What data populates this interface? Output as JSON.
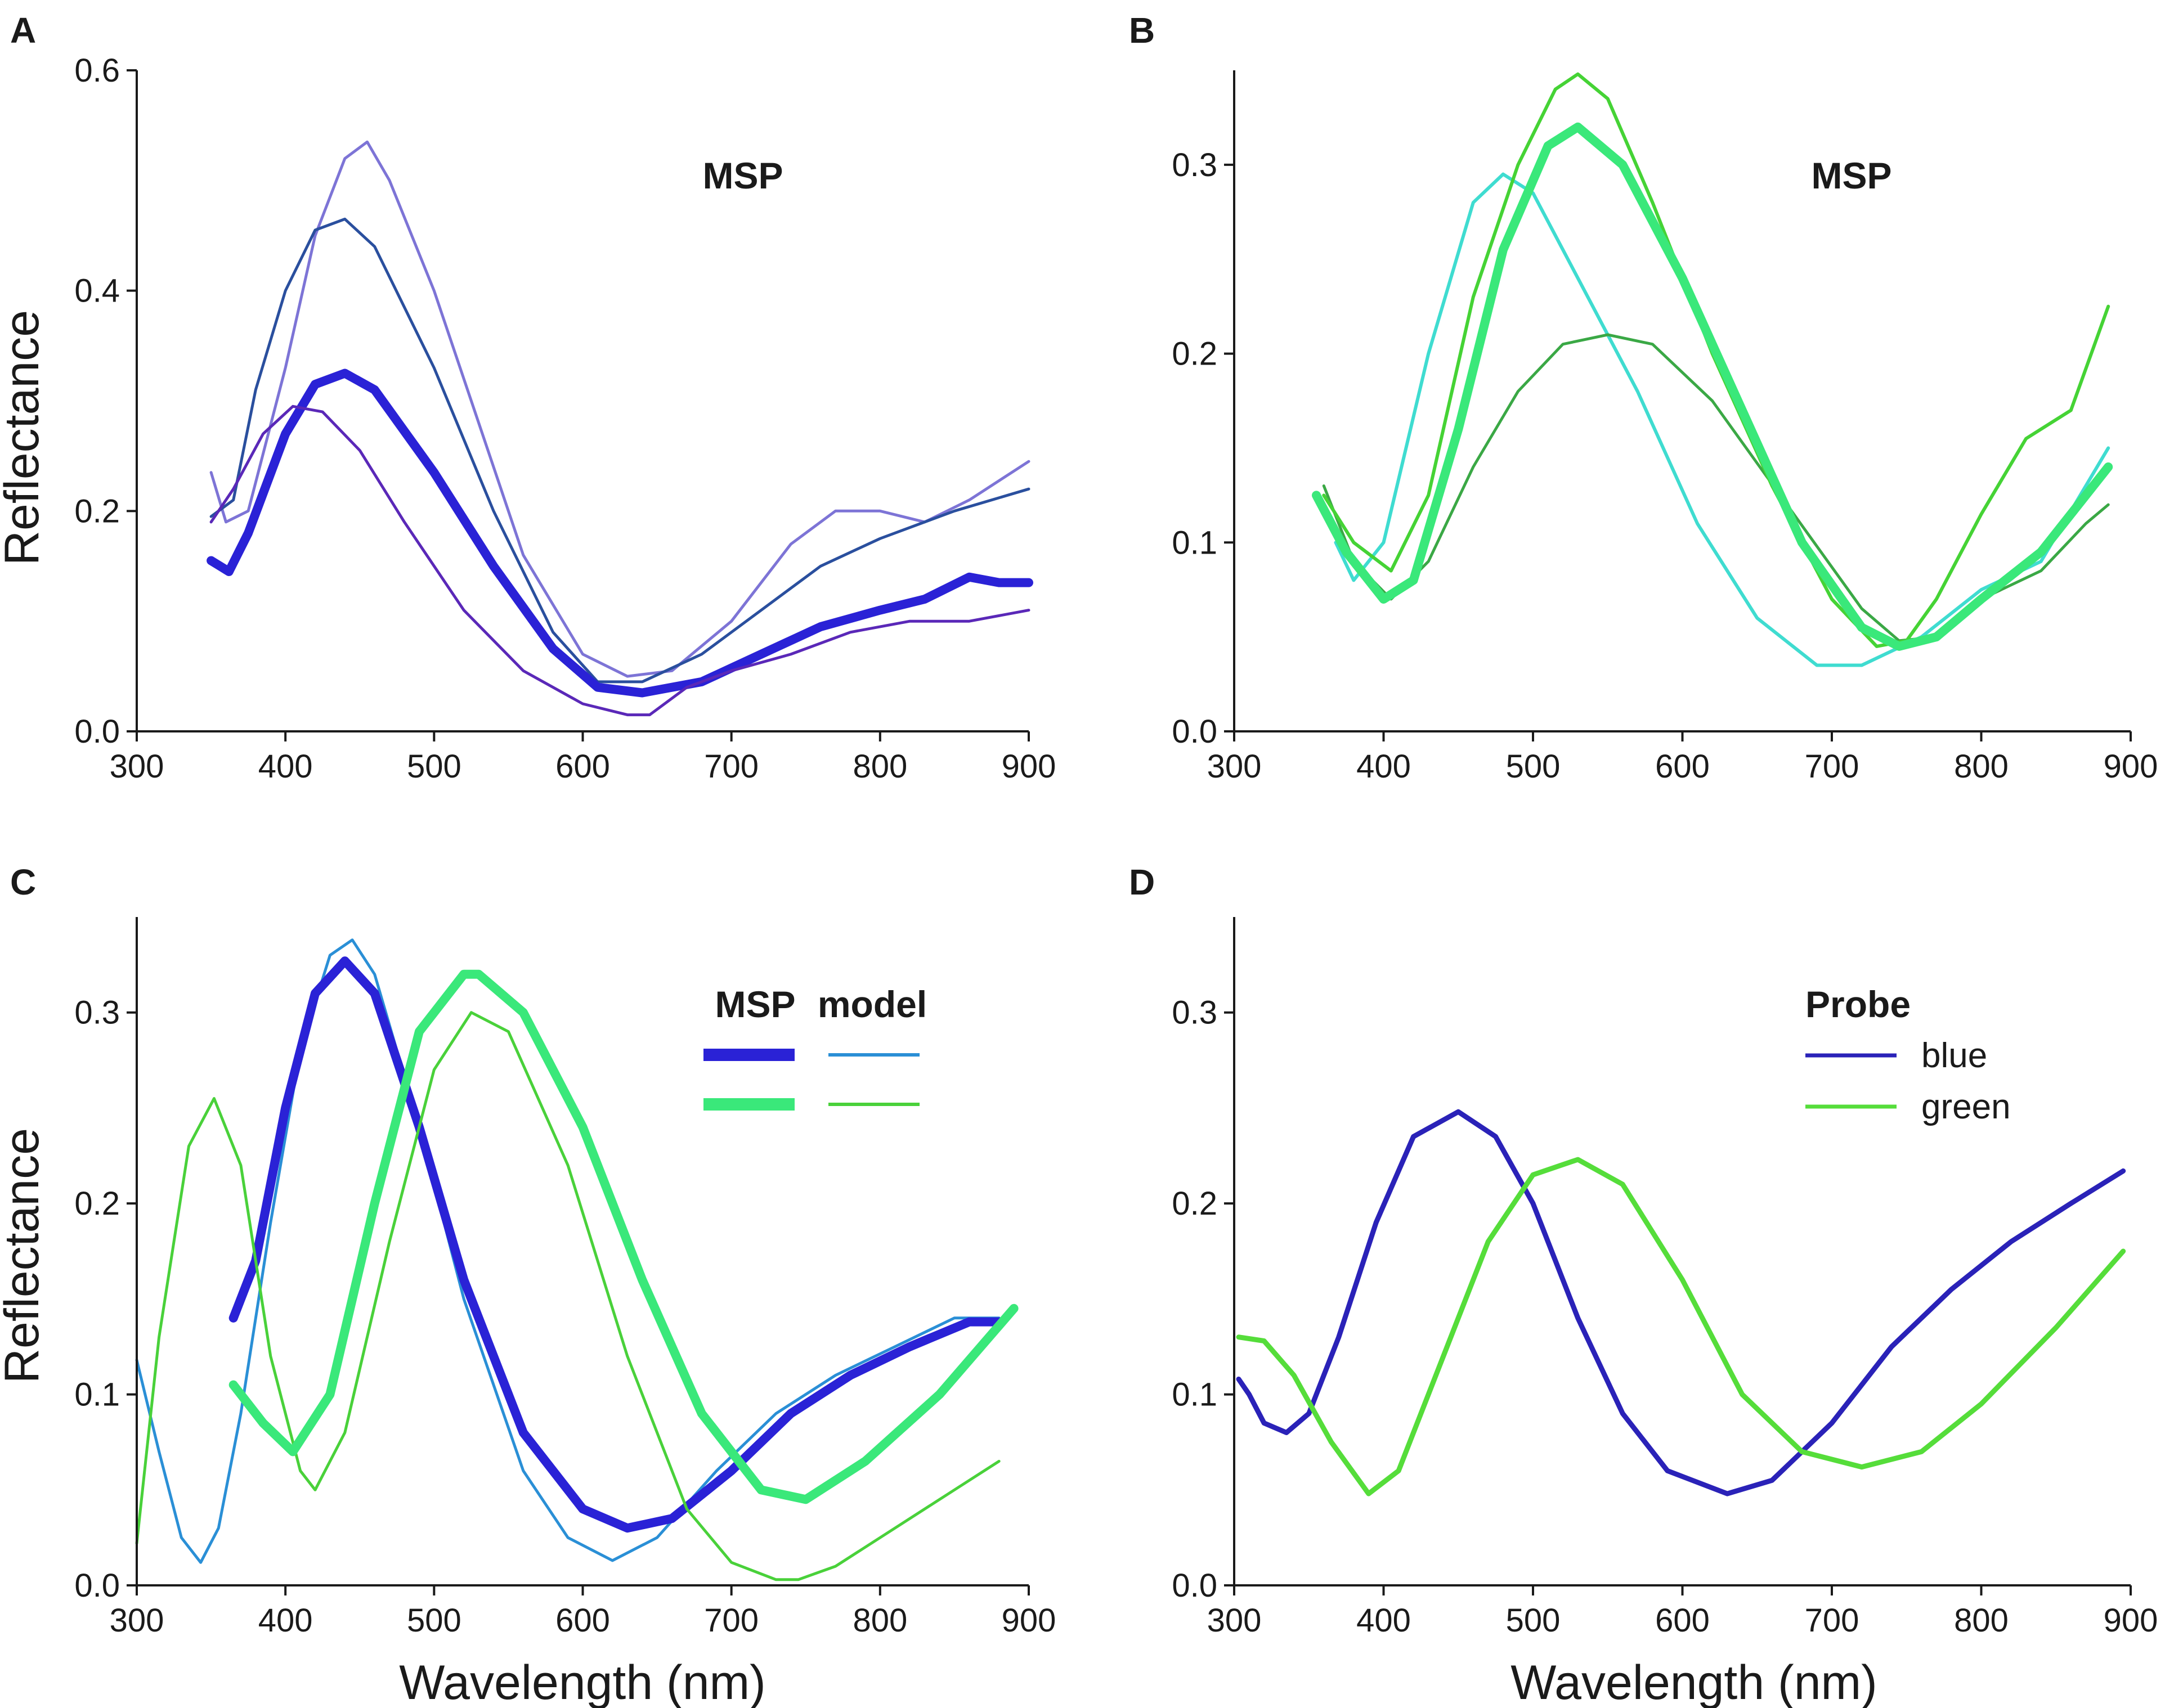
{
  "colors": {
    "blue_msp": "#2a22d6",
    "blue_model": "#2a8fd6",
    "blue_probe": "#2a22b8",
    "green_msp": "#3ae87a",
    "green_model": "#49d13a",
    "green_probe": "#55dd3a",
    "light_purple": "#7d74d6",
    "navy": "#2a4f9e",
    "purple": "#5a28b8",
    "cyan": "#3fdcd0",
    "lime": "#45d335",
    "dark_green": "#3aa845"
  },
  "chart_data": [
    {
      "panel": "A",
      "type": "line",
      "title": "",
      "annotation": "MSP",
      "xlabel": "",
      "ylabel": "Reflectance",
      "xlim": [
        300,
        900
      ],
      "ylim": [
        0,
        0.6
      ],
      "xticks": [
        "300",
        "400",
        "500",
        "600",
        "700",
        "800",
        "900"
      ],
      "yticks": [
        "0.0",
        "0.2",
        "0.4",
        "0.6"
      ],
      "series": [
        {
          "name": "msp-light-purple",
          "color": "#7d74d6",
          "width": 5,
          "x": [
            350,
            360,
            375,
            400,
            420,
            440,
            455,
            470,
            500,
            530,
            560,
            600,
            630,
            660,
            700,
            740,
            770,
            800,
            830,
            860,
            900
          ],
          "y": [
            0.235,
            0.19,
            0.2,
            0.33,
            0.45,
            0.52,
            0.535,
            0.5,
            0.4,
            0.28,
            0.16,
            0.07,
            0.05,
            0.055,
            0.1,
            0.17,
            0.2,
            0.2,
            0.19,
            0.21,
            0.245
          ]
        },
        {
          "name": "msp-navy",
          "color": "#2a4f9e",
          "width": 5,
          "x": [
            350,
            365,
            380,
            400,
            420,
            440,
            460,
            500,
            540,
            580,
            610,
            640,
            680,
            720,
            760,
            800,
            850,
            900
          ],
          "y": [
            0.195,
            0.21,
            0.31,
            0.4,
            0.455,
            0.465,
            0.44,
            0.33,
            0.2,
            0.09,
            0.045,
            0.045,
            0.07,
            0.11,
            0.15,
            0.175,
            0.2,
            0.22
          ]
        },
        {
          "name": "msp-blue-mean",
          "color": "#2a22d6",
          "width": 16,
          "x": [
            350,
            362,
            375,
            400,
            420,
            440,
            460,
            500,
            540,
            580,
            610,
            640,
            680,
            720,
            760,
            800,
            830,
            860,
            880,
            900
          ],
          "y": [
            0.155,
            0.145,
            0.18,
            0.27,
            0.315,
            0.325,
            0.31,
            0.235,
            0.15,
            0.075,
            0.04,
            0.035,
            0.045,
            0.07,
            0.095,
            0.11,
            0.12,
            0.14,
            0.135,
            0.135
          ]
        },
        {
          "name": "msp-purple",
          "color": "#5a28b8",
          "width": 5,
          "x": [
            350,
            365,
            385,
            405,
            425,
            450,
            480,
            520,
            560,
            600,
            630,
            645,
            670,
            700,
            740,
            780,
            820,
            860,
            900
          ],
          "y": [
            0.19,
            0.22,
            0.27,
            0.295,
            0.29,
            0.255,
            0.19,
            0.11,
            0.055,
            0.025,
            0.015,
            0.015,
            0.04,
            0.055,
            0.07,
            0.09,
            0.1,
            0.1,
            0.11
          ]
        }
      ]
    },
    {
      "panel": "B",
      "type": "line",
      "title": "",
      "annotation": "MSP",
      "xlabel": "",
      "ylabel": "",
      "xlim": [
        300,
        900
      ],
      "ylim": [
        0,
        0.35
      ],
      "xticks": [
        "300",
        "400",
        "500",
        "600",
        "700",
        "800",
        "900"
      ],
      "yticks": [
        "0.0",
        "0.1",
        "0.2",
        "0.3"
      ],
      "series": [
        {
          "name": "msp-cyan",
          "color": "#3fdcd0",
          "width": 6,
          "x": [
            368,
            380,
            400,
            430,
            460,
            480,
            500,
            530,
            570,
            610,
            650,
            690,
            720,
            760,
            800,
            840,
            885
          ],
          "y": [
            0.1,
            0.08,
            0.1,
            0.2,
            0.28,
            0.295,
            0.285,
            0.24,
            0.18,
            0.11,
            0.06,
            0.035,
            0.035,
            0.05,
            0.075,
            0.09,
            0.15
          ]
        },
        {
          "name": "msp-dark-green",
          "color": "#3aa845",
          "width": 5,
          "x": [
            360,
            380,
            405,
            430,
            460,
            490,
            520,
            550,
            580,
            620,
            670,
            720,
            745,
            770,
            800,
            840,
            870,
            885
          ],
          "y": [
            0.13,
            0.09,
            0.07,
            0.09,
            0.14,
            0.18,
            0.205,
            0.21,
            0.205,
            0.175,
            0.12,
            0.065,
            0.048,
            0.05,
            0.07,
            0.085,
            0.11,
            0.12
          ]
        },
        {
          "name": "msp-lime",
          "color": "#45d335",
          "width": 6,
          "x": [
            360,
            380,
            405,
            430,
            460,
            490,
            515,
            530,
            550,
            580,
            620,
            660,
            700,
            730,
            750,
            770,
            800,
            830,
            860,
            885
          ],
          "y": [
            0.125,
            0.1,
            0.085,
            0.125,
            0.23,
            0.3,
            0.34,
            0.348,
            0.335,
            0.28,
            0.2,
            0.13,
            0.07,
            0.045,
            0.048,
            0.07,
            0.115,
            0.155,
            0.17,
            0.225
          ]
        },
        {
          "name": "msp-green-mean",
          "color": "#3ae87a",
          "width": 16,
          "x": [
            355,
            375,
            400,
            420,
            450,
            480,
            510,
            530,
            560,
            600,
            640,
            680,
            720,
            745,
            770,
            800,
            840,
            885
          ],
          "y": [
            0.125,
            0.095,
            0.07,
            0.08,
            0.16,
            0.255,
            0.31,
            0.32,
            0.3,
            0.24,
            0.17,
            0.1,
            0.055,
            0.045,
            0.05,
            0.07,
            0.095,
            0.14
          ]
        }
      ]
    },
    {
      "panel": "C",
      "type": "line",
      "title": "",
      "xlabel": "Wavelength (nm)",
      "ylabel": "Reflectance",
      "xlim": [
        300,
        900
      ],
      "ylim": [
        0,
        0.35
      ],
      "xticks": [
        "300",
        "400",
        "500",
        "600",
        "700",
        "800",
        "900"
      ],
      "yticks": [
        "0.0",
        "0.1",
        "0.2",
        "0.3"
      ],
      "legend": {
        "col1": "MSP",
        "col2": "model",
        "position": "top-right"
      },
      "series": [
        {
          "name": "model-blue",
          "color": "#2a8fd6",
          "width": 5,
          "x": [
            300,
            315,
            330,
            343,
            355,
            370,
            390,
            410,
            430,
            445,
            460,
            490,
            520,
            560,
            590,
            620,
            650,
            690,
            730,
            770,
            810,
            850,
            880
          ],
          "y": [
            0.118,
            0.07,
            0.025,
            0.012,
            0.03,
            0.09,
            0.19,
            0.28,
            0.33,
            0.338,
            0.32,
            0.24,
            0.15,
            0.06,
            0.025,
            0.013,
            0.025,
            0.06,
            0.09,
            0.11,
            0.125,
            0.14,
            0.14
          ]
        },
        {
          "name": "msp-blue",
          "color": "#2a22d6",
          "width": 16,
          "x": [
            365,
            380,
            400,
            420,
            440,
            460,
            490,
            520,
            560,
            600,
            630,
            660,
            700,
            740,
            780,
            820,
            860,
            880
          ],
          "y": [
            0.14,
            0.17,
            0.25,
            0.31,
            0.327,
            0.31,
            0.24,
            0.16,
            0.08,
            0.04,
            0.03,
            0.035,
            0.06,
            0.09,
            0.11,
            0.125,
            0.138,
            0.138
          ]
        },
        {
          "name": "model-green",
          "color": "#49d13a",
          "width": 5,
          "x": [
            300,
            315,
            335,
            352,
            370,
            390,
            410,
            420,
            440,
            470,
            500,
            525,
            550,
            590,
            630,
            670,
            700,
            730,
            745,
            770,
            810,
            850,
            880
          ],
          "y": [
            0.022,
            0.13,
            0.23,
            0.255,
            0.22,
            0.12,
            0.06,
            0.05,
            0.08,
            0.18,
            0.27,
            0.3,
            0.29,
            0.22,
            0.12,
            0.04,
            0.012,
            0.003,
            0.003,
            0.01,
            0.03,
            0.05,
            0.065
          ]
        },
        {
          "name": "msp-green",
          "color": "#3ae87a",
          "width": 16,
          "x": [
            365,
            385,
            405,
            430,
            460,
            490,
            520,
            530,
            560,
            600,
            640,
            680,
            720,
            750,
            790,
            840,
            890
          ],
          "y": [
            0.105,
            0.085,
            0.07,
            0.1,
            0.2,
            0.29,
            0.32,
            0.32,
            0.3,
            0.24,
            0.16,
            0.09,
            0.05,
            0.045,
            0.065,
            0.1,
            0.145
          ]
        }
      ]
    },
    {
      "panel": "D",
      "type": "line",
      "title": "",
      "xlabel": "Wavelength (nm)",
      "ylabel": "",
      "xlim": [
        300,
        900
      ],
      "ylim": [
        0,
        0.35
      ],
      "xticks": [
        "300",
        "400",
        "500",
        "600",
        "700",
        "800",
        "900"
      ],
      "yticks": [
        "0.0",
        "0.1",
        "0.2",
        "0.3"
      ],
      "legend": {
        "title": "Probe",
        "entries": [
          "blue",
          "green"
        ],
        "position": "top-right"
      },
      "series": [
        {
          "name": "probe-blue",
          "color": "#2a22b8",
          "width": 9,
          "x": [
            303,
            310,
            320,
            335,
            350,
            370,
            395,
            420,
            450,
            475,
            500,
            530,
            560,
            590,
            630,
            660,
            700,
            740,
            780,
            820,
            860,
            895
          ],
          "y": [
            0.108,
            0.1,
            0.085,
            0.08,
            0.09,
            0.13,
            0.19,
            0.235,
            0.248,
            0.235,
            0.2,
            0.14,
            0.09,
            0.06,
            0.048,
            0.055,
            0.085,
            0.125,
            0.155,
            0.18,
            0.2,
            0.217
          ]
        },
        {
          "name": "probe-green",
          "color": "#55dd3a",
          "width": 9,
          "x": [
            303,
            320,
            340,
            365,
            390,
            410,
            440,
            470,
            500,
            530,
            560,
            600,
            640,
            680,
            720,
            760,
            800,
            850,
            895
          ],
          "y": [
            0.13,
            0.128,
            0.11,
            0.075,
            0.048,
            0.06,
            0.12,
            0.18,
            0.215,
            0.223,
            0.21,
            0.16,
            0.1,
            0.07,
            0.062,
            0.07,
            0.095,
            0.135,
            0.175
          ]
        }
      ]
    }
  ]
}
